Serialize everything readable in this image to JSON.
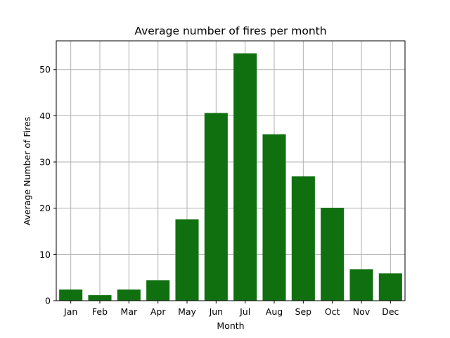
{
  "chart_data": {
    "type": "bar",
    "title": "Average number of fires per month",
    "xlabel": "Month",
    "ylabel": "Average Number of Fires",
    "categories": [
      "Jan",
      "Feb",
      "Mar",
      "Apr",
      "May",
      "Jun",
      "Jul",
      "Aug",
      "Sep",
      "Oct",
      "Nov",
      "Dec"
    ],
    "values": [
      2.4,
      1.2,
      2.4,
      4.4,
      17.6,
      40.6,
      53.5,
      36.0,
      26.9,
      20.1,
      6.8,
      5.9
    ],
    "ylim": [
      0,
      56.2
    ],
    "yticks": [
      0,
      10,
      20,
      30,
      40,
      50
    ],
    "grid": true,
    "bar_color": "#107010"
  }
}
